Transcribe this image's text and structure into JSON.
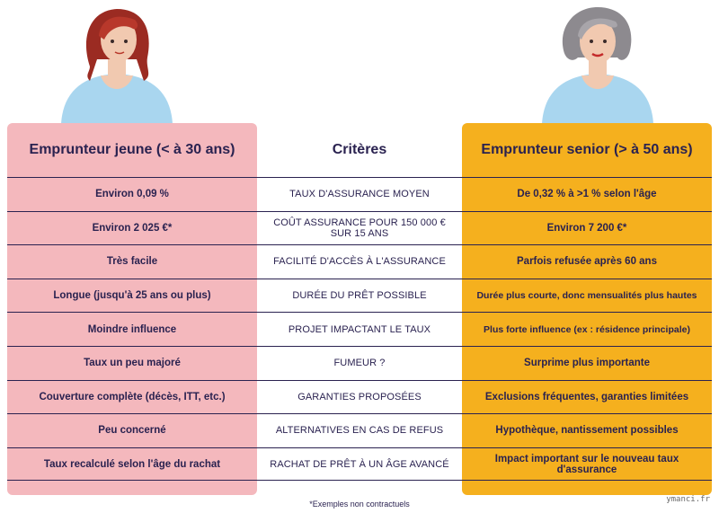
{
  "headers": {
    "young": "Emprunteur jeune (< à 30 ans)",
    "criteria": "Critères",
    "senior": "Emprunteur senior (> à 50 ans)"
  },
  "rows": [
    {
      "young": "Environ 0,09 %",
      "criteria": "TAUX D'ASSURANCE MOYEN",
      "senior": "De 0,32 % à >1 % selon l'âge"
    },
    {
      "young": "Environ 2 025 €*",
      "criteria": "COÛT ASSURANCE POUR 150 000 € SUR 15 ANS",
      "senior": "Environ 7 200 €*"
    },
    {
      "young": "Très facile",
      "criteria": "FACILITÉ D'ACCÈS À L'ASSURANCE",
      "senior": "Parfois refusée après 60 ans"
    },
    {
      "young": "Longue (jusqu'à 25 ans ou plus)",
      "criteria": "DURÉE DU PRÊT POSSIBLE",
      "senior": "Durée plus courte, donc mensualités plus hautes"
    },
    {
      "young": "Moindre influence",
      "criteria": "PROJET IMPACTANT LE TAUX",
      "senior": "Plus forte influence (ex : résidence principale)"
    },
    {
      "young": "Taux un peu majoré",
      "criteria": "FUMEUR ?",
      "senior": "Surprime plus importante"
    },
    {
      "young": "Couverture complète (décès, ITT, etc.)",
      "criteria": "GARANTIES PROPOSÉES",
      "senior": "Exclusions fréquentes, garanties limitées"
    },
    {
      "young": "Peu concerné",
      "criteria": "ALTERNATIVES EN CAS DE REFUS",
      "senior": "Hypothèque, nantissement possibles"
    },
    {
      "young": "Taux recalculé selon l'âge du rachat",
      "criteria": "RACHAT DE PRÊT À UN ÂGE AVANCÉ",
      "senior": "Impact important sur le nouveau taux d'assurance"
    }
  ],
  "footnote": "*Exemples non contractuels",
  "watermark": "ymanci.fr",
  "colors": {
    "young_bg": "#f4b8bd",
    "senior_bg": "#f5b01e",
    "text": "#2a2250"
  },
  "icons": {
    "young": "young-woman-avatar-icon",
    "senior": "senior-woman-avatar-icon"
  }
}
